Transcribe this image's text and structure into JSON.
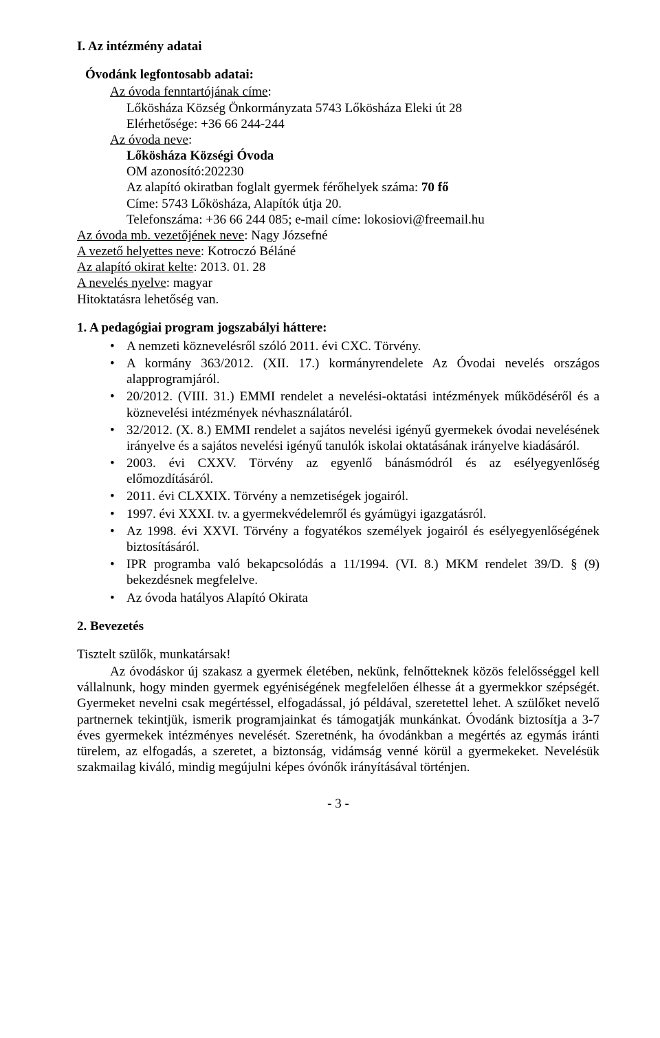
{
  "section1": {
    "heading": "I.   Az intézmény adatai",
    "subheading": "Óvodánk legfontosabb adatai:",
    "line1_label": "Az óvoda fenntartójának címe",
    "line1_colon": ":",
    "line1_v1": "Lőkösháza Község Önkormányzata 5743 Lőkösháza Eleki út 28",
    "line1_v2": "Elérhetősége: +36 66 244-244",
    "line2_label": "Az óvoda neve",
    "line2_colon": ":",
    "line2_v1": "Lőkösháza Községi Óvoda",
    "line2_v2": "OM azonosító:202230",
    "line2_v3pre": "Az alapító okiratban foglalt gyermek férőhelyek száma: ",
    "line2_v3bold": "70 fő",
    "line2_v4": "Címe: 5743 Lőkösháza, Alapítók útja 20.",
    "line2_v5": "Telefonszáma: +36 66 244 085; e-mail címe: lokosiovi@freemail.hu",
    "line3_label": "Az óvoda mb. vezetőjének neve",
    "line3_rest": ": Nagy Józsefné",
    "line4_label": "A vezető helyettes neve",
    "line4_rest": ": Kotroczó Béláné",
    "line5_label": "Az alapító okirat kelte",
    "line5_rest": ": 2013. 01. 28",
    "line6_label": "A nevelés nyelve",
    "line6_rest": ": magyar",
    "line7": "Hitoktatásra lehetőség van."
  },
  "section2": {
    "heading": "1. A pedagógiai program jogszabályi háttere:",
    "bullets": [
      "A nemzeti köznevelésről szóló 2011. évi CXC. Törvény.",
      "A kormány 363/2012. (XII. 17.) kormányrendelete Az Óvodai nevelés országos alapprogramjáról.",
      "20/2012. (VIII. 31.) EMMI rendelet a nevelési-oktatási intézmények működéséről és a köznevelési intézmények névhasználatáról.",
      "32/2012. (X. 8.) EMMI rendelet a sajátos nevelési igényű gyermekek óvodai nevelésének irányelve és a sajátos nevelési igényű tanulók iskolai oktatásának irányelve kiadásáról.",
      "2003. évi CXXV. Törvény az egyenlő bánásmódról és az esélyegyenlőség előmozdításáról.",
      "2011. évi CLXXIX. Törvény a nemzetiségek jogairól.",
      "1997. évi XXXI. tv. a gyermekvédelemről és gyámügyi igazgatásról.",
      "Az 1998. évi XXVI. Törvény a fogyatékos személyek jogairól és esélyegyenlőségének biztosításáról.",
      "IPR programba való bekapcsolódás a 11/1994. (VI. 8.) MKM rendelet 39/D. § (9) bekezdésnek megfelelve.",
      "Az óvoda hatályos Alapító Okirata"
    ]
  },
  "section3": {
    "heading": "2. Bevezetés",
    "greeting": "Tisztelt szülők, munkatársak!",
    "body": "Az óvodáskor új szakasz a gyermek életében, nekünk, felnőtteknek közös felelősséggel kell vállalnunk, hogy minden gyermek egyéniségének megfelelően élhesse át a gyermekkor szépségét. Gyermeket nevelni csak megértéssel, elfogadással, jó példával, szeretettel lehet. A szülőket nevelő partnernek tekintjük, ismerik programjainkat és támogatják munkánkat. Óvodánk biztosítja a 3-7 éves gyermekek intézményes nevelését. Szeretnénk, ha óvodánkban a megértés az egymás iránti türelem, az elfogadás, a szeretet, a biztonság, vidámság venné körül a gyermekeket. Nevelésük szakmailag kiváló, mindig megújulni képes óvónők irányításával történjen."
  },
  "pageNumber": "- 3 -"
}
